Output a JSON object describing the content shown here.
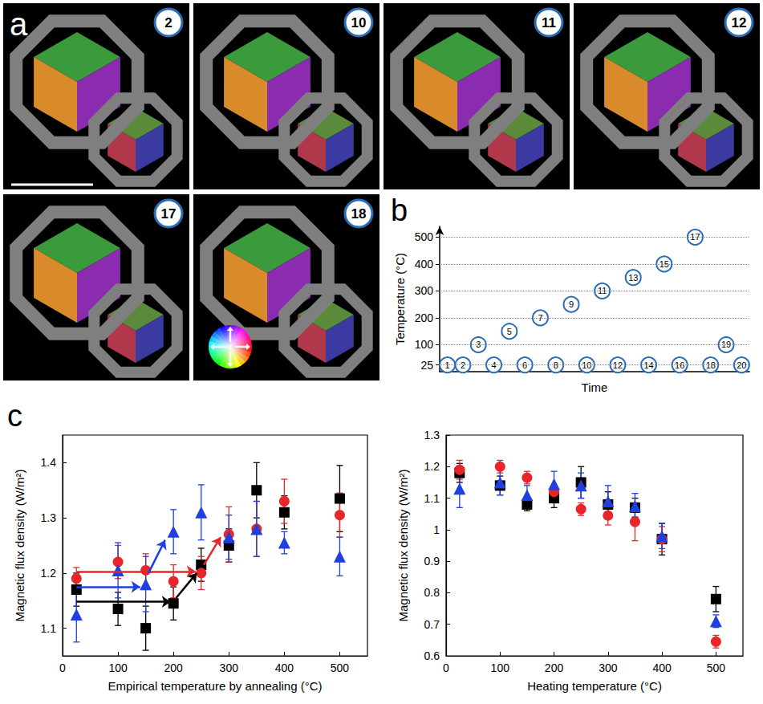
{
  "images": {
    "letter": "a",
    "frames": [
      2,
      10,
      11,
      12,
      17,
      18
    ]
  },
  "chart_data": [
    {
      "type": "scatter",
      "letter": "b",
      "x_label": "Time",
      "y_label": "Temperature (°C)",
      "x": [
        1,
        2,
        3,
        4,
        5,
        6,
        7,
        8,
        9,
        10,
        11,
        12,
        13,
        14,
        15,
        16,
        17,
        18,
        19,
        20
      ],
      "values": [
        25,
        25,
        100,
        25,
        150,
        25,
        200,
        25,
        250,
        25,
        300,
        25,
        350,
        25,
        400,
        25,
        500,
        25,
        100,
        25
      ],
      "labels": [
        "1",
        "2",
        "3",
        "4",
        "5",
        "6",
        "7",
        "8",
        "9",
        "10",
        "11",
        "12",
        "13",
        "14",
        "15",
        "16",
        "17",
        "18",
        "19",
        "20"
      ],
      "xlim": [
        0.5,
        20.5
      ],
      "ylim": [
        0,
        540
      ],
      "yticks": [
        25,
        100,
        200,
        300,
        400,
        500
      ],
      "grid": true,
      "tick_labels": "y",
      "color": "#2a6db5",
      "marker": "circle"
    },
    {
      "type": "scatter",
      "letter": "c",
      "x_label": "Empirical temperature by annealing (°C)",
      "y_label": "Magnetic flux density (W/m²)",
      "x": [
        25,
        100,
        150,
        200,
        250,
        300,
        350,
        400,
        500
      ],
      "xlim": [
        0,
        550
      ],
      "xticks": [
        0,
        100,
        200,
        300,
        400,
        500
      ],
      "ylim": [
        1.05,
        1.45
      ],
      "yticks": [
        1.1,
        1.2,
        1.3,
        1.4
      ],
      "series": [
        {
          "color": "#000000",
          "marker": "square",
          "values": [
            1.17,
            1.135,
            1.1,
            1.145,
            1.215,
            1.25,
            1.35,
            1.31,
            1.335
          ],
          "errors": [
            0.03,
            0.03,
            0.04,
            0.03,
            0.03,
            0.03,
            0.05,
            0.03,
            0.06
          ],
          "arrows": [
            [
              25,
              1.148,
              195,
              1.148
            ],
            [
              205,
              1.155,
              242,
              1.2
            ]
          ]
        },
        {
          "color": "#e8262a",
          "marker": "circle",
          "values": [
            1.19,
            1.22,
            1.205,
            1.185,
            1.2,
            1.27,
            1.28,
            1.33,
            1.305
          ],
          "errors": [
            0.02,
            0.03,
            0.03,
            0.03,
            0.03,
            0.05,
            0.05,
            0.04,
            0.04
          ],
          "arrows": [
            [
              25,
              1.203,
              240,
              1.203
            ],
            [
              255,
              1.215,
              285,
              1.265
            ]
          ]
        },
        {
          "color": "#1f3fe0",
          "marker": "triangle",
          "values": [
            1.125,
            1.205,
            1.18,
            1.275,
            1.31,
            1.265,
            1.28,
            1.255,
            1.23
          ],
          "errors": [
            0.05,
            0.05,
            0.05,
            0.04,
            0.05,
            0.04,
            0.05,
            0.02,
            0.035
          ],
          "arrows": [
            [
              25,
              1.175,
              140,
              1.175
            ],
            [
              155,
              1.2,
              185,
              1.26
            ]
          ]
        }
      ]
    },
    {
      "type": "scatter",
      "x_label": "Heating temperature (°C)",
      "y_label": "Magnetic flux density (W/m²)",
      "x": [
        25,
        100,
        150,
        200,
        250,
        300,
        350,
        400,
        500
      ],
      "xlim": [
        0,
        550
      ],
      "xticks": [
        0,
        100,
        200,
        300,
        400,
        500
      ],
      "ylim": [
        0.6,
        1.3
      ],
      "yticks": [
        0.6,
        0.7,
        0.8,
        0.9,
        1,
        1.1,
        1.2,
        1.3
      ],
      "series": [
        {
          "color": "#000000",
          "marker": "square",
          "values": [
            1.18,
            1.14,
            1.08,
            1.1,
            1.15,
            1.08,
            1.07,
            0.97,
            0.78
          ],
          "errors": [
            0.03,
            0.03,
            0.02,
            0.03,
            0.05,
            0.04,
            0.03,
            0.05,
            0.04
          ]
        },
        {
          "color": "#e8262a",
          "marker": "circle",
          "values": [
            1.19,
            1.2,
            1.165,
            1.12,
            1.065,
            1.045,
            1.025,
            0.97,
            0.645
          ],
          "errors": [
            0.03,
            0.02,
            0.02,
            0.02,
            0.02,
            0.03,
            0.06,
            0.04,
            0.02
          ]
        },
        {
          "color": "#1f3fe0",
          "marker": "triangle",
          "values": [
            1.13,
            1.15,
            1.11,
            1.145,
            1.14,
            1.09,
            1.075,
            0.98,
            0.71
          ],
          "errors": [
            0.06,
            0.04,
            0.03,
            0.04,
            0.04,
            0.05,
            0.04,
            0.04,
            0.02
          ]
        }
      ]
    }
  ]
}
